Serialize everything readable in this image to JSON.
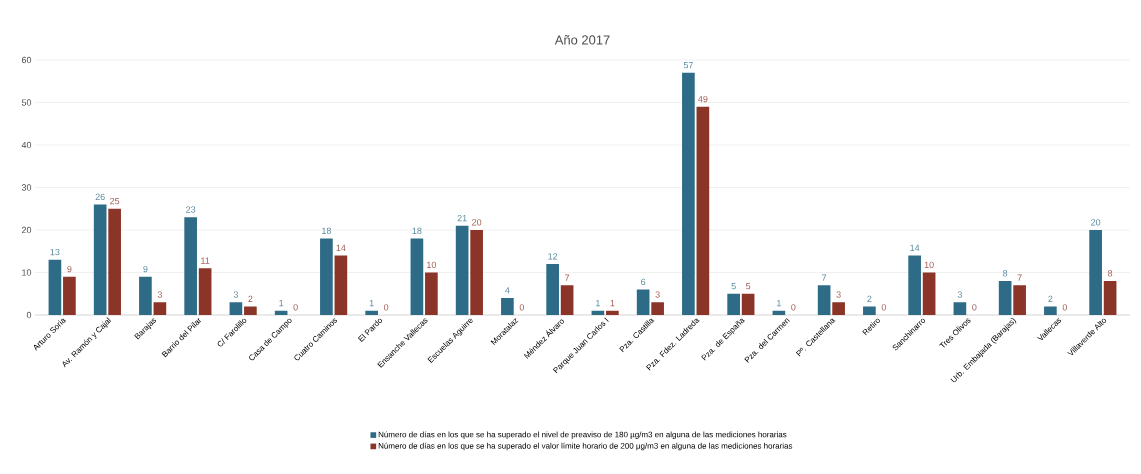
{
  "chart_data": {
    "type": "bar",
    "title": "Año 2017",
    "categories": [
      "Arturo Soria",
      "Av. Ramón y Cajal",
      "Barajas",
      "Barrio del Pilar",
      "C/ Farolillo",
      "Casa de Campo",
      "Cuatro Caminos",
      "El Pardo",
      "Ensanche Vallecas",
      "Escuelas Aguirre",
      "Moratalaz",
      "Méndez Álvaro",
      "Parque Juan Carlos I",
      "Pza. Castilla",
      "Pza. Fdez. Ladreda",
      "Pza. de España",
      "Pza. del Carmen",
      "Pº. Castellana",
      "Retiro",
      "Sanchinarro",
      "Tres Olivos",
      "Urb. Embajada (Barajas)",
      "Vallecas",
      "Villaverde Alto"
    ],
    "series": [
      {
        "name": "Número de días en los que se ha superado el nivel de preaviso de 180 µg/m3 en alguna de las mediciones horarias",
        "color": "#2e6b86",
        "values": [
          13,
          26,
          9,
          23,
          3,
          1,
          18,
          1,
          18,
          21,
          4,
          12,
          1,
          6,
          57,
          5,
          1,
          7,
          2,
          14,
          3,
          8,
          2,
          20
        ]
      },
      {
        "name": "Número de días en los que se ha superado el valor límite horario de 200 µg/m3 en alguna de las mediciones horarias",
        "color": "#8b3428",
        "values": [
          9,
          25,
          3,
          11,
          2,
          0,
          14,
          0,
          10,
          20,
          0,
          7,
          1,
          3,
          49,
          5,
          0,
          3,
          0,
          10,
          0,
          7,
          0,
          8
        ]
      }
    ],
    "ylim": [
      0,
      60
    ],
    "yticks": [
      0,
      10,
      20,
      30,
      40,
      50,
      60
    ],
    "grid": "y",
    "legend": "bottom",
    "data_labels": true
  }
}
